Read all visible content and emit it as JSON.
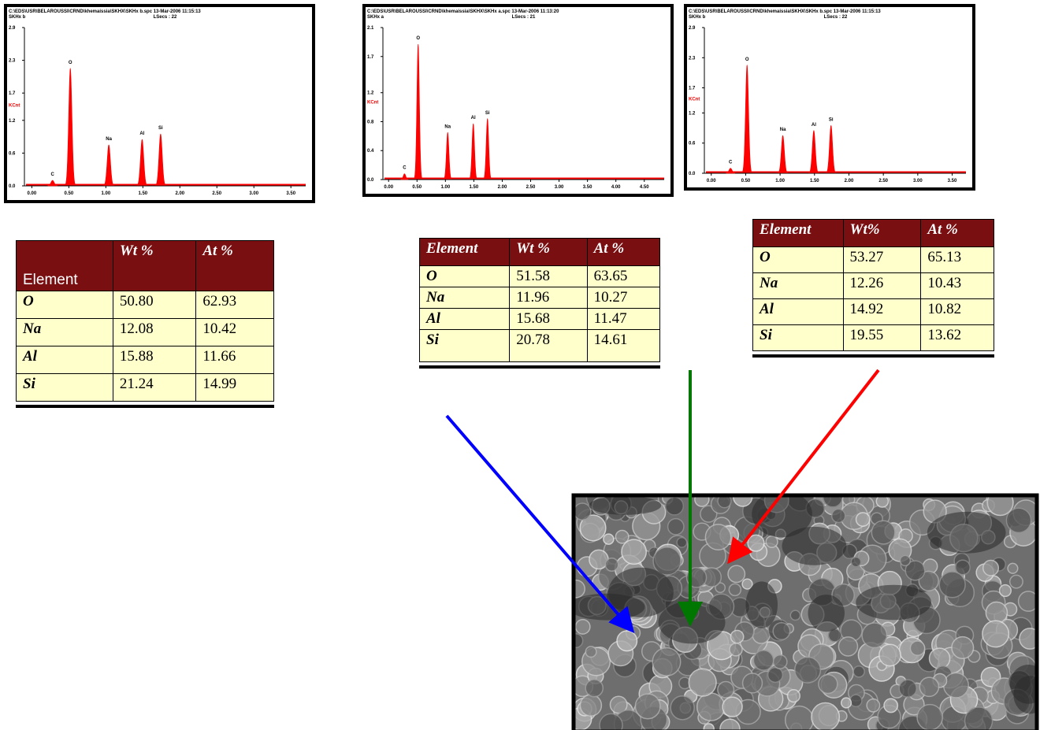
{
  "chart_data": [
    {
      "type": "spectrum",
      "title": "C:\\EDS\\USR\\BELAROUSSI\\CRND\\khemaissia\\SKHX\\SKHx b.spc  13-Mar-2006 11:15:13",
      "subtitle": "SKHx b",
      "annotation": "LSecs : 22",
      "ylabel": "KCnt",
      "color": "#ff0000",
      "labels": [
        "C",
        "O",
        "Na",
        "Al",
        "Si"
      ],
      "x": [
        0.28,
        0.52,
        1.04,
        1.49,
        1.74
      ],
      "values": [
        0.1,
        2.15,
        0.75,
        0.85,
        0.95
      ],
      "xlim": [
        -0.1,
        3.7
      ],
      "ylim": [
        0,
        2.9
      ],
      "xticks": [
        {
          "value": 0,
          "label": "0.00"
        },
        {
          "value": 0.5,
          "label": "0.50"
        },
        {
          "value": 1,
          "label": "1.00"
        },
        {
          "value": 1.5,
          "label": "1.50"
        },
        {
          "value": 2,
          "label": "2.00"
        },
        {
          "value": 2.5,
          "label": "2.50"
        },
        {
          "value": 3,
          "label": "3.00"
        },
        {
          "value": 3.5,
          "label": "3.50"
        }
      ],
      "yticks": [
        {
          "value": 0,
          "label": "0.0"
        },
        0.6,
        1.2,
        1.7,
        2.3,
        2.9
      ]
    },
    {
      "type": "spectrum",
      "title": "C:\\EDS\\USR\\BELAROUSSI\\CRND\\khemaissia\\SKHX\\SKHx a.spc  13-Mar-2006 11:13:20",
      "subtitle": "SKHx a",
      "annotation": "LSecs : 21",
      "ylabel": "KCnt",
      "color": "#ff0000",
      "labels": [
        "C",
        "O",
        "Na",
        "Al",
        "Si"
      ],
      "x": [
        0.28,
        0.52,
        1.04,
        1.49,
        1.74
      ],
      "values": [
        0.08,
        1.87,
        0.65,
        0.77,
        0.84
      ],
      "xlim": [
        -0.1,
        4.85
      ],
      "ylim": [
        0,
        2.1
      ],
      "xticks": [
        {
          "value": 0,
          "label": "0.00"
        },
        {
          "value": 0.5,
          "label": "0.50"
        },
        {
          "value": 1,
          "label": "1.00"
        },
        {
          "value": 1.5,
          "label": "1.50"
        },
        {
          "value": 2,
          "label": "2.00"
        },
        {
          "value": 2.5,
          "label": "2.50"
        },
        {
          "value": 3,
          "label": "3.00"
        },
        {
          "value": 3.5,
          "label": "3.50"
        },
        {
          "value": 4,
          "label": "4.00"
        },
        {
          "value": 4.5,
          "label": "4.50"
        }
      ],
      "yticks": [
        {
          "value": 0,
          "label": "0.0"
        },
        0.4,
        0.8,
        1.2,
        1.7,
        2.1
      ]
    },
    {
      "type": "spectrum",
      "title": "C:\\EDS\\USR\\BELAROUSSI\\CRND\\khemaissia\\SKHX\\SKHx b.spc  13-Mar-2006 11:15:13",
      "subtitle": "SKHx b",
      "annotation": "LSecs : 22",
      "ylabel": "KCnt",
      "color": "#ff0000",
      "labels": [
        "C",
        "O",
        "Na",
        "Al",
        "Si"
      ],
      "x": [
        0.28,
        0.52,
        1.04,
        1.49,
        1.74
      ],
      "values": [
        0.1,
        2.15,
        0.75,
        0.85,
        0.95
      ],
      "xlim": [
        -0.1,
        3.7
      ],
      "ylim": [
        0,
        2.9
      ],
      "xticks": [
        {
          "value": 0,
          "label": "0.00"
        },
        {
          "value": 0.5,
          "label": "0.50"
        },
        {
          "value": 1,
          "label": "1.00"
        },
        {
          "value": 1.5,
          "label": "1.50"
        },
        {
          "value": 2,
          "label": "2.00"
        },
        {
          "value": 2.5,
          "label": "2.50"
        },
        {
          "value": 3,
          "label": "3.00"
        },
        {
          "value": 3.5,
          "label": "3.50"
        }
      ],
      "yticks": [
        {
          "value": 0,
          "label": "0.0"
        },
        0.6,
        1.2,
        1.7,
        2.3,
        2.9
      ]
    }
  ],
  "tables": [
    {
      "header": [
        "Element",
        "Wt %",
        "At %"
      ],
      "rows": [
        [
          "O",
          "50.80",
          "62.93"
        ],
        [
          "Na",
          "12.08",
          "10.42"
        ],
        [
          "Al",
          "15.88",
          "11.66"
        ],
        [
          "Si",
          "21.24",
          "14.99"
        ]
      ]
    },
    {
      "header": [
        "Element",
        "Wt %",
        "At %"
      ],
      "rows": [
        [
          "O",
          "51.58",
          "63.65"
        ],
        [
          "Na",
          "11.96",
          "10.27"
        ],
        [
          "Al",
          "15.68",
          "11.47"
        ],
        [
          "Si",
          "20.78",
          "14.61"
        ]
      ]
    },
    {
      "header": [
        "Element",
        "Wt%",
        "At %"
      ],
      "rows": [
        [
          "O",
          "53.27",
          "65.13"
        ],
        [
          "Na",
          "12.26",
          "10.43"
        ],
        [
          "Al",
          "14.92",
          "10.82"
        ],
        [
          "Si",
          "19.55",
          "13.62"
        ]
      ]
    }
  ]
}
